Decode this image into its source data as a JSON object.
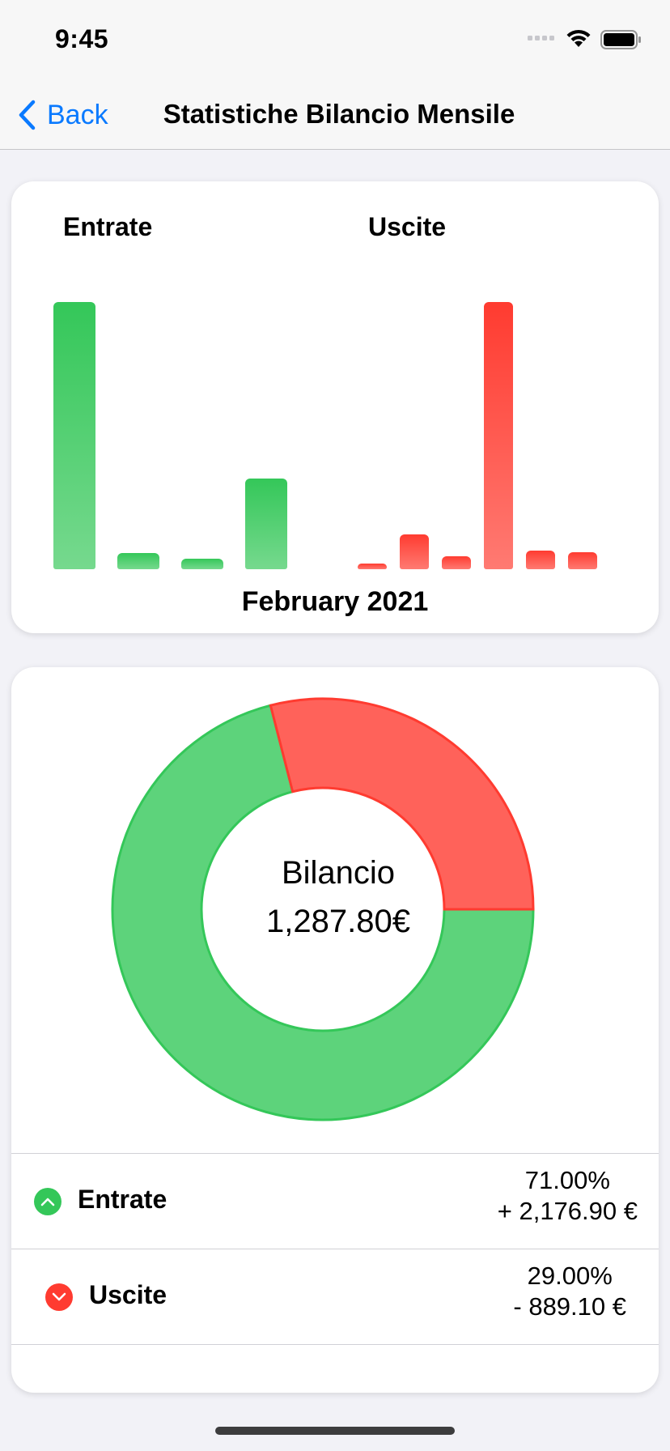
{
  "status_bar": {
    "time": "9:45"
  },
  "nav": {
    "back_label": "Back",
    "title": "Statistiche Bilancio Mensile"
  },
  "colors": {
    "income": "#34c759",
    "expense": "#ff3b30",
    "accent": "#0a7aff"
  },
  "bar_card": {
    "income_label": "Entrate",
    "expense_label": "Uscite",
    "month": "February 2021"
  },
  "chart_data": [
    {
      "type": "bar",
      "series": [
        {
          "name": "Entrate",
          "values": [
            1.0,
            0.06,
            0.04,
            0.34
          ]
        },
        {
          "name": "Uscite",
          "values": [
            0.02,
            0.13,
            0.05,
            1.0,
            0.07,
            0.065
          ]
        }
      ]
    },
    {
      "type": "pie",
      "labels": [
        "Entrate",
        "Uscite"
      ],
      "values": [
        71.0,
        29.0
      ],
      "colors": [
        "#5dd37b",
        "#ff625a"
      ],
      "center_title": "Bilancio",
      "center_value": "1,287.80€"
    }
  ],
  "summary": {
    "rows": [
      {
        "label": "Entrate",
        "percent": "71.00%",
        "amount": "+ 2,176.90 €",
        "icon": "chevron-up-circle-icon"
      },
      {
        "label": "Uscite",
        "percent": "29.00%",
        "amount": "- 889.10 €",
        "icon": "chevron-down-circle-icon"
      }
    ]
  }
}
